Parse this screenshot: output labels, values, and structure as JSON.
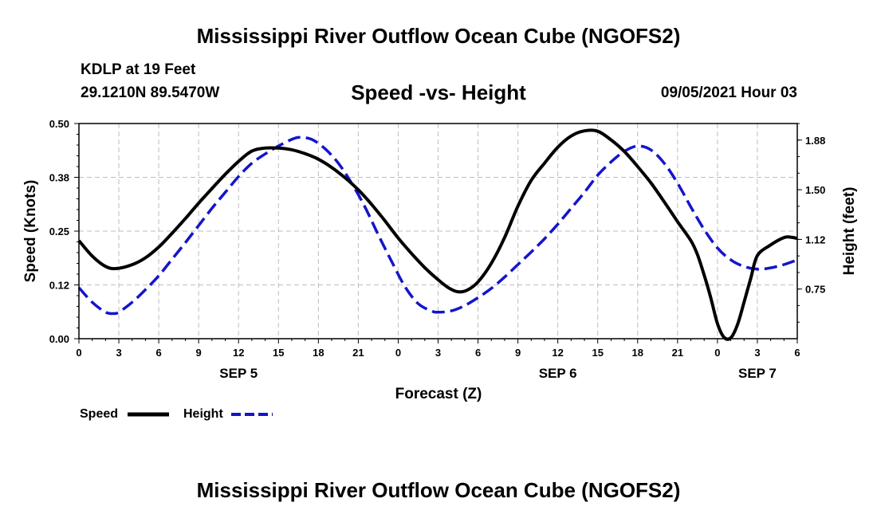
{
  "header": {
    "title": "Mississippi River Outflow Ocean Cube (NGOFS2)",
    "station": "KDLP at 19 Feet",
    "coords": "29.1210N  89.5470W",
    "subtitle": "Speed -vs- Height",
    "datetime": "09/05/2021 Hour 03"
  },
  "footer": {
    "title": "Mississippi River Outflow Ocean Cube (NGOFS2)"
  },
  "chart_data": {
    "type": "line",
    "xlabel": "Forecast (Z)",
    "ylabel_left": "Speed (Knots)",
    "ylabel_right": "Height (feet)",
    "x_range_hours": [
      0,
      54
    ],
    "x_ticks": [
      {
        "h": 0,
        "label": "0"
      },
      {
        "h": 3,
        "label": "3"
      },
      {
        "h": 6,
        "label": "6"
      },
      {
        "h": 9,
        "label": "9"
      },
      {
        "h": 12,
        "label": "12"
      },
      {
        "h": 15,
        "label": "15"
      },
      {
        "h": 18,
        "label": "18"
      },
      {
        "h": 21,
        "label": "21"
      },
      {
        "h": 24,
        "label": "0"
      },
      {
        "h": 27,
        "label": "3"
      },
      {
        "h": 30,
        "label": "6"
      },
      {
        "h": 33,
        "label": "9"
      },
      {
        "h": 36,
        "label": "12"
      },
      {
        "h": 39,
        "label": "15"
      },
      {
        "h": 42,
        "label": "18"
      },
      {
        "h": 45,
        "label": "21"
      },
      {
        "h": 48,
        "label": "0"
      },
      {
        "h": 51,
        "label": "3"
      },
      {
        "h": 54,
        "label": "6"
      }
    ],
    "date_labels": [
      {
        "h": 12,
        "label": "SEP 5"
      },
      {
        "h": 36,
        "label": "SEP 6"
      },
      {
        "h": 51,
        "label": "SEP 7"
      }
    ],
    "y_left": {
      "range": [
        0,
        0.5
      ],
      "ticks": [
        0.0,
        0.125,
        0.25,
        0.375,
        0.5
      ],
      "tick_labels": [
        "0.00",
        "0.12",
        "0.25",
        "0.38",
        "0.50"
      ]
    },
    "y_right": {
      "range": [
        0.375,
        2.0
      ],
      "ticks": [
        0.75,
        1.125,
        1.5,
        1.875
      ],
      "tick_labels": [
        "0.75",
        "1.12",
        "1.50",
        "1.88"
      ]
    },
    "grid": true,
    "legend_position": "bottom-left",
    "series": [
      {
        "name": "Speed",
        "axis": "left",
        "color": "#000000",
        "dash": "solid",
        "points": [
          [
            0,
            0.228
          ],
          [
            1,
            0.192
          ],
          [
            2,
            0.168
          ],
          [
            2.8,
            0.163
          ],
          [
            4,
            0.172
          ],
          [
            5,
            0.188
          ],
          [
            6,
            0.213
          ],
          [
            7,
            0.245
          ],
          [
            8,
            0.279
          ],
          [
            9,
            0.315
          ],
          [
            10,
            0.349
          ],
          [
            11,
            0.382
          ],
          [
            12,
            0.412
          ],
          [
            13,
            0.436
          ],
          [
            14,
            0.443
          ],
          [
            15,
            0.443
          ],
          [
            16,
            0.439
          ],
          [
            17,
            0.43
          ],
          [
            18,
            0.417
          ],
          [
            19,
            0.398
          ],
          [
            20,
            0.374
          ],
          [
            21,
            0.346
          ],
          [
            22,
            0.312
          ],
          [
            23,
            0.274
          ],
          [
            24,
            0.234
          ],
          [
            25,
            0.198
          ],
          [
            26,
            0.165
          ],
          [
            27,
            0.137
          ],
          [
            27.8,
            0.118
          ],
          [
            28.5,
            0.109
          ],
          [
            29.2,
            0.113
          ],
          [
            30,
            0.132
          ],
          [
            31,
            0.175
          ],
          [
            32,
            0.235
          ],
          [
            33,
            0.308
          ],
          [
            34,
            0.368
          ],
          [
            35,
            0.408
          ],
          [
            36,
            0.445
          ],
          [
            37,
            0.471
          ],
          [
            38,
            0.483
          ],
          [
            39,
            0.482
          ],
          [
            40,
            0.462
          ],
          [
            41,
            0.435
          ],
          [
            42,
            0.4
          ],
          [
            43,
            0.362
          ],
          [
            44,
            0.318
          ],
          [
            45,
            0.272
          ],
          [
            46,
            0.228
          ],
          [
            46.5,
            0.195
          ],
          [
            47,
            0.148
          ],
          [
            47.5,
            0.095
          ],
          [
            48,
            0.035
          ],
          [
            48.5,
            0.003
          ],
          [
            49,
            0.002
          ],
          [
            49.5,
            0.032
          ],
          [
            50,
            0.085
          ],
          [
            50.5,
            0.14
          ],
          [
            51,
            0.193
          ],
          [
            52,
            0.218
          ],
          [
            53,
            0.235
          ],
          [
            53.5,
            0.236
          ],
          [
            54,
            0.233
          ]
        ]
      },
      {
        "name": "Height",
        "axis": "right",
        "color": "#1414cc",
        "dash": "dashed",
        "points": [
          [
            0,
            0.76
          ],
          [
            1,
            0.65
          ],
          [
            2,
            0.575
          ],
          [
            2.6,
            0.565
          ],
          [
            3,
            0.575
          ],
          [
            4,
            0.65
          ],
          [
            5,
            0.745
          ],
          [
            6,
            0.85
          ],
          [
            7,
            0.975
          ],
          [
            8,
            1.1
          ],
          [
            9,
            1.23
          ],
          [
            10,
            1.36
          ],
          [
            11,
            1.48
          ],
          [
            12,
            1.6
          ],
          [
            13,
            1.7
          ],
          [
            14,
            1.77
          ],
          [
            15,
            1.83
          ],
          [
            16,
            1.88
          ],
          [
            16.6,
            1.895
          ],
          [
            17.5,
            1.88
          ],
          [
            18.5,
            1.81
          ],
          [
            19.5,
            1.7
          ],
          [
            20.5,
            1.55
          ],
          [
            21.5,
            1.37
          ],
          [
            22.5,
            1.16
          ],
          [
            23.5,
            0.96
          ],
          [
            24.5,
            0.77
          ],
          [
            25.5,
            0.64
          ],
          [
            26.5,
            0.585
          ],
          [
            27,
            0.575
          ],
          [
            28,
            0.585
          ],
          [
            29,
            0.625
          ],
          [
            30,
            0.685
          ],
          [
            31,
            0.755
          ],
          [
            32,
            0.84
          ],
          [
            33,
            0.935
          ],
          [
            34,
            1.03
          ],
          [
            35,
            1.13
          ],
          [
            36,
            1.24
          ],
          [
            37,
            1.36
          ],
          [
            38,
            1.48
          ],
          [
            39,
            1.61
          ],
          [
            40,
            1.71
          ],
          [
            41,
            1.79
          ],
          [
            42,
            1.83
          ],
          [
            43,
            1.8
          ],
          [
            44,
            1.7
          ],
          [
            45,
            1.55
          ],
          [
            46,
            1.37
          ],
          [
            47,
            1.2
          ],
          [
            48,
            1.06
          ],
          [
            49,
            0.97
          ],
          [
            50,
            0.92
          ],
          [
            51,
            0.9
          ],
          [
            52,
            0.91
          ],
          [
            53,
            0.935
          ],
          [
            54,
            0.97
          ]
        ]
      }
    ]
  },
  "legend": {
    "items": [
      {
        "label": "Speed",
        "color": "#000000",
        "dash": "solid"
      },
      {
        "label": "Height",
        "color": "#1414cc",
        "dash": "dashed"
      }
    ]
  }
}
